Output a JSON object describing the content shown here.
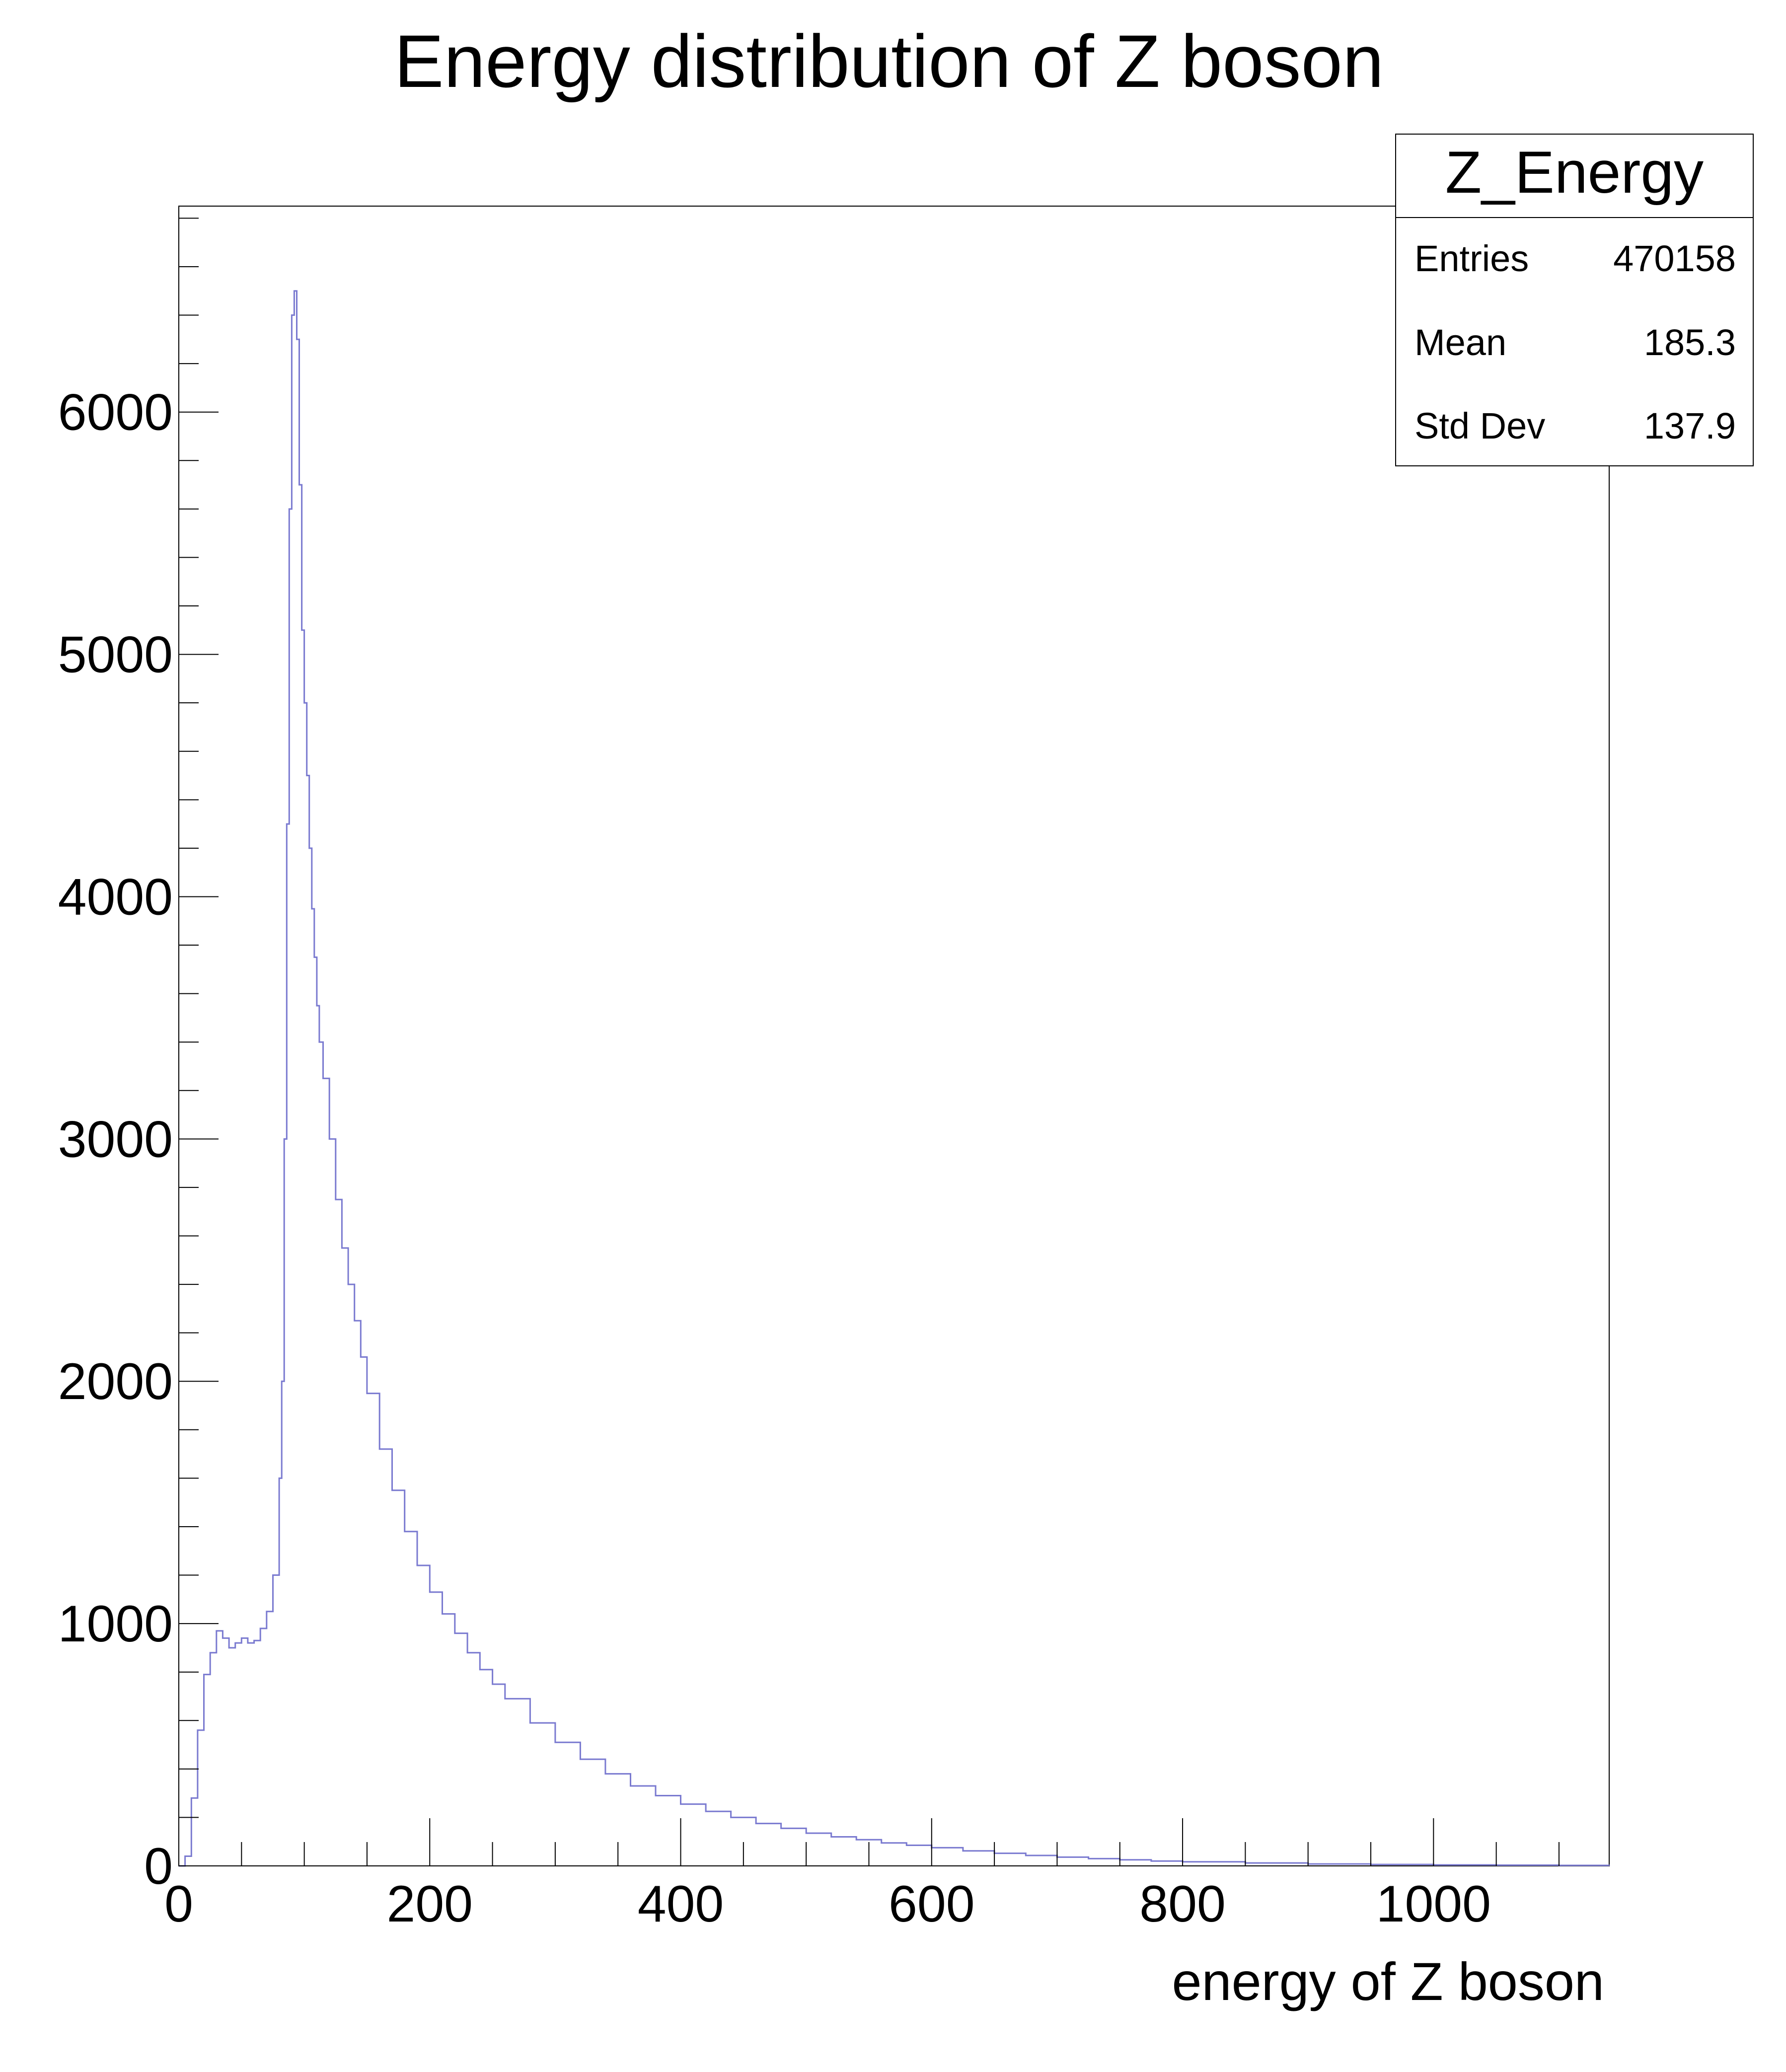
{
  "chart_data": {
    "type": "histogram",
    "title": "Energy distribution of Z boson",
    "xlabel": "energy of Z boson",
    "ylabel": "",
    "xlim": [
      0,
      1140
    ],
    "ylim": [
      0,
      6850
    ],
    "x_ticks": [
      0,
      200,
      400,
      600,
      800,
      1000
    ],
    "y_ticks": [
      0,
      1000,
      2000,
      3000,
      4000,
      5000,
      6000
    ],
    "line_color": "#7a7ad0",
    "grid": false,
    "stats_box": {
      "title": "Z_Energy",
      "placement": "top-right",
      "rows": [
        {
          "label": "Entries",
          "value": "470158"
        },
        {
          "label": "Mean",
          "value": "185.3"
        },
        {
          "label": "Std Dev",
          "value": "137.9"
        }
      ]
    },
    "series": [
      {
        "x": [
          0,
          5,
          10,
          15,
          20,
          25,
          30,
          35,
          40,
          45,
          50,
          55,
          60,
          65,
          70,
          75,
          80,
          82,
          84,
          86,
          88,
          90,
          92,
          94,
          96,
          98,
          100,
          102,
          104,
          106,
          108,
          110,
          112,
          115,
          120,
          125,
          130,
          135,
          140,
          145,
          150,
          160,
          170,
          180,
          190,
          200,
          210,
          220,
          230,
          240,
          250,
          260,
          280,
          300,
          320,
          340,
          360,
          380,
          400,
          420,
          440,
          460,
          480,
          500,
          520,
          540,
          560,
          580,
          600,
          625,
          650,
          675,
          700,
          725,
          750,
          775,
          800,
          850,
          900,
          950,
          1000,
          1050,
          1100,
          1140
        ],
        "y": [
          0,
          40,
          280,
          560,
          790,
          880,
          970,
          940,
          900,
          920,
          940,
          920,
          930,
          980,
          1050,
          1200,
          1600,
          2000,
          3000,
          4300,
          5600,
          6400,
          6500,
          6300,
          5700,
          5100,
          4800,
          4500,
          4200,
          3950,
          3750,
          3550,
          3400,
          3250,
          3000,
          2750,
          2550,
          2400,
          2250,
          2100,
          1950,
          1720,
          1550,
          1380,
          1240,
          1130,
          1040,
          960,
          880,
          810,
          750,
          690,
          590,
          510,
          440,
          380,
          330,
          290,
          255,
          225,
          200,
          175,
          155,
          135,
          120,
          108,
          95,
          85,
          75,
          62,
          52,
          43,
          36,
          30,
          25,
          20,
          17,
          12,
          8,
          6,
          4,
          3,
          2,
          1
        ]
      }
    ]
  }
}
